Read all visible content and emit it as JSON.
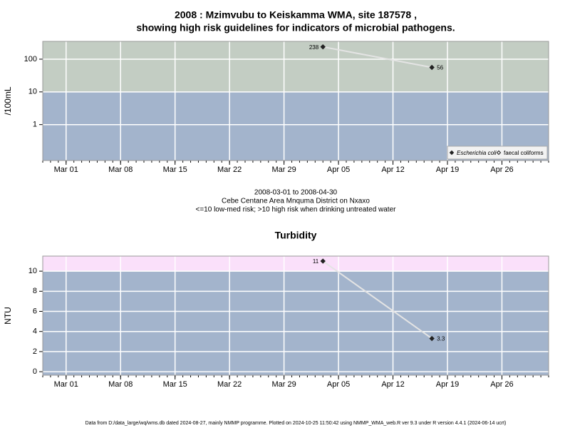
{
  "chart_data": [
    {
      "type": "line",
      "title": [
        "2008 : Mzimvubu to Keiskamma WMA, site 187578 ,",
        "showing high risk guidelines for indicators of microbial pathogens."
      ],
      "ylabel": "/100mL",
      "log_y": true,
      "x": [
        "2008-04-03",
        "2008-04-17"
      ],
      "series": [
        {
          "name": "Escherichia coli",
          "color": "#222222",
          "marker": "filled",
          "values": [
            238,
            56
          ]
        },
        {
          "name": "faecal coliforms",
          "color": "#222222",
          "marker": "open",
          "values": [
            null,
            null
          ]
        }
      ],
      "xlim": [
        "2008-02-27",
        "2008-05-02"
      ],
      "xticks": [
        {
          "value": "2008-03-01",
          "label": "Mar 01"
        },
        {
          "value": "2008-03-08",
          "label": "Mar 08"
        },
        {
          "value": "2008-03-15",
          "label": "Mar 15"
        },
        {
          "value": "2008-03-22",
          "label": "Mar 22"
        },
        {
          "value": "2008-03-29",
          "label": "Mar 29"
        },
        {
          "value": "2008-04-05",
          "label": "Apr 05"
        },
        {
          "value": "2008-04-12",
          "label": "Apr 12"
        },
        {
          "value": "2008-04-19",
          "label": "Apr 19"
        },
        {
          "value": "2008-04-26",
          "label": "Apr 26"
        }
      ],
      "ylim": [
        0.08,
        350
      ],
      "yticks": [
        1,
        10,
        100
      ],
      "threshold": 10,
      "above_color": "#c3cdc3",
      "below_color": "#a3b4cc",
      "line_color": "#e4e4e4",
      "grid": true,
      "legend": "lower right",
      "caption": [
        "2008-03-01 to 2008-04-30",
        "Cebe Centane Area Mnquma District on Nxaxo",
        "<=10 low-med risk; >10 high risk when drinking untreated water"
      ]
    },
    {
      "type": "line",
      "title": [
        "Turbidity"
      ],
      "ylabel": "NTU",
      "log_y": false,
      "x": [
        "2008-04-03",
        "2008-04-17"
      ],
      "series": [
        {
          "name": "Turbidity",
          "color": "#222222",
          "marker": "filled",
          "values": [
            11,
            3.3
          ]
        }
      ],
      "xlim": [
        "2008-02-27",
        "2008-05-02"
      ],
      "xticks": [
        {
          "value": "2008-03-01",
          "label": "Mar 01"
        },
        {
          "value": "2008-03-08",
          "label": "Mar 08"
        },
        {
          "value": "2008-03-15",
          "label": "Mar 15"
        },
        {
          "value": "2008-03-22",
          "label": "Mar 22"
        },
        {
          "value": "2008-03-29",
          "label": "Mar 29"
        },
        {
          "value": "2008-04-05",
          "label": "Apr 05"
        },
        {
          "value": "2008-04-12",
          "label": "Apr 12"
        },
        {
          "value": "2008-04-19",
          "label": "Apr 19"
        },
        {
          "value": "2008-04-26",
          "label": "Apr 26"
        }
      ],
      "ylim": [
        -0.35,
        11.5
      ],
      "yticks": [
        0,
        2,
        4,
        6,
        8,
        10
      ],
      "threshold": 10,
      "above_color": "#fae0fa",
      "below_color": "#a3b4cc",
      "line_color": "#e4e4e4",
      "grid": true
    }
  ],
  "footer": "Data from D:/data_large/wq/wms.db dated 2024-08-27, mainly NMMP programme. Plotted on 2024-10-25 11:50:42 using NMMP_WMA_web.R ver 9.3 under R version 4.4.1 (2024-06-14 ucrt)"
}
